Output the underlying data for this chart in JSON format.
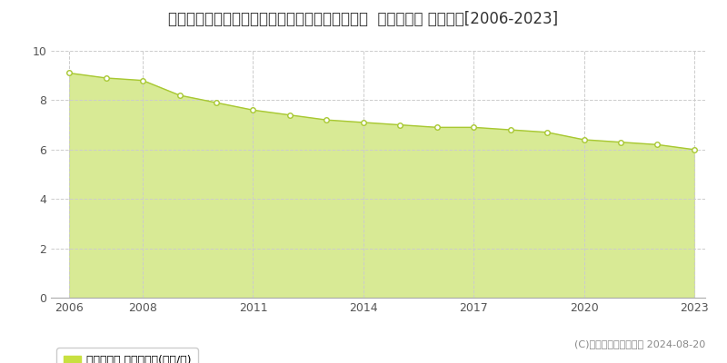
{
  "title": "埼玉県比企郡ときがわ町大字番匠字台７０５番１  基準地価格 地価推移[2006-2023]",
  "years": [
    2006,
    2007,
    2008,
    2009,
    2010,
    2011,
    2012,
    2013,
    2014,
    2015,
    2016,
    2017,
    2018,
    2019,
    2020,
    2021,
    2022,
    2023
  ],
  "values": [
    9.1,
    8.9,
    8.8,
    8.2,
    7.9,
    7.6,
    7.4,
    7.2,
    7.1,
    7.0,
    6.9,
    6.9,
    6.8,
    6.7,
    6.4,
    6.3,
    6.2,
    6.0
  ],
  "line_color": "#a8c832",
  "fill_color": "#d4e88a",
  "fill_alpha": 0.9,
  "marker_face": "#ffffff",
  "marker_edge": "#a8c832",
  "marker_size": 4,
  "ylim": [
    0,
    10
  ],
  "yticks": [
    0,
    2,
    4,
    6,
    8,
    10
  ],
  "xticks": [
    2006,
    2008,
    2011,
    2014,
    2017,
    2020,
    2023
  ],
  "grid_color": "#cccccc",
  "background_color": "#ffffff",
  "legend_label": "基準地価格 平均坪単価(万円/坪)",
  "legend_color": "#c8e040",
  "copyright_text": "(C)土地価格ドットコム 2024-08-20",
  "title_fontsize": 12,
  "axis_fontsize": 9,
  "legend_fontsize": 9
}
